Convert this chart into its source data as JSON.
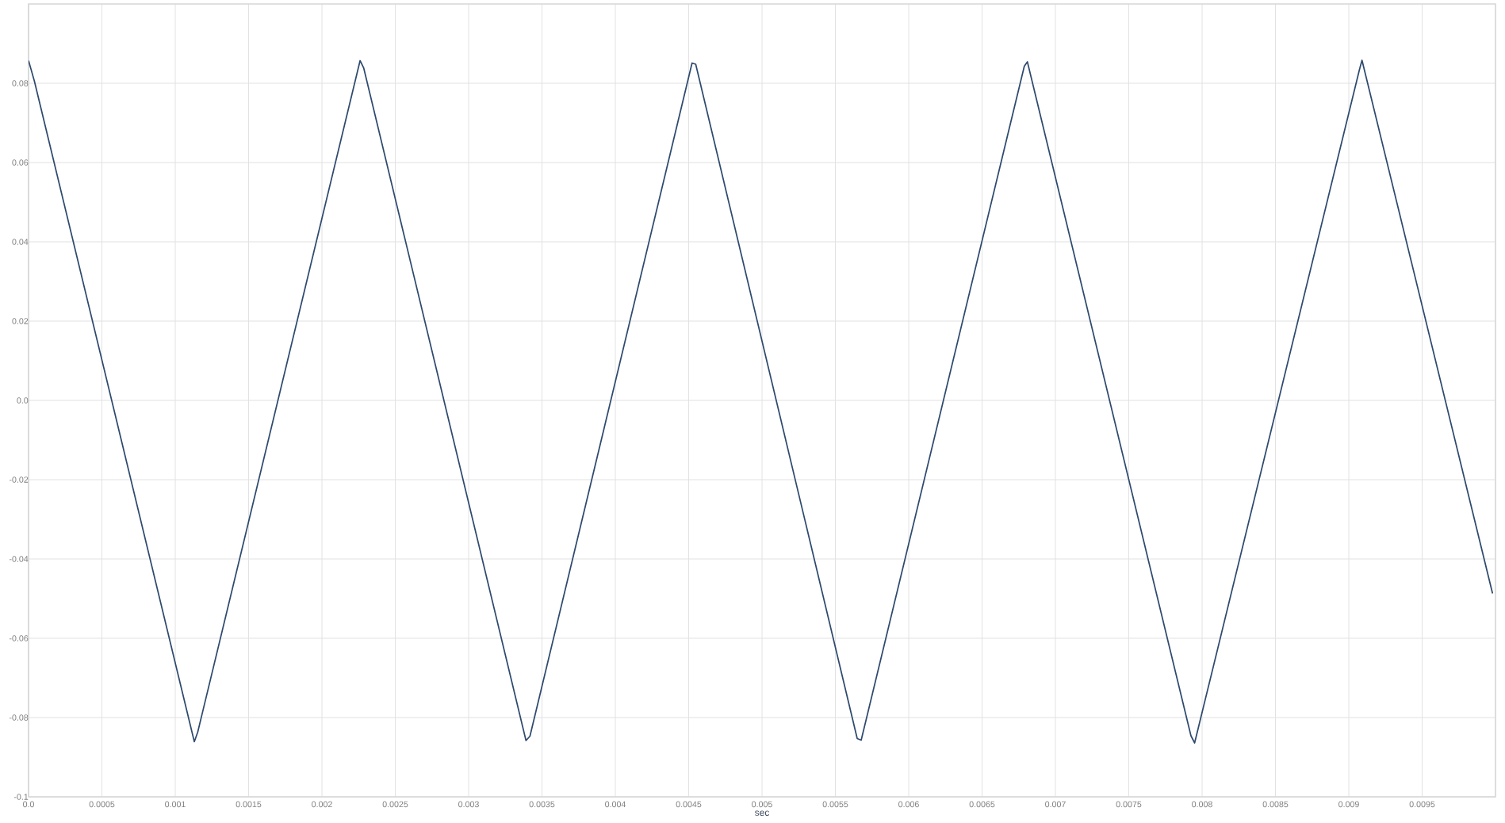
{
  "chart_data": {
    "type": "line",
    "xlabel": "sec",
    "x": [
      0,
      4e-05,
      0.00113,
      0.001153,
      0.00226,
      0.002285,
      0.003391,
      0.003418,
      0.004523,
      0.004548,
      0.005649,
      0.005676,
      0.006788,
      0.006809,
      0.007924,
      0.007949,
      0.009073,
      0.00909,
      0.00998
    ],
    "series": [
      {
        "color": "#2e4a6e",
        "values": [
          0.0857,
          0.0805,
          -0.0861,
          -0.0837,
          0.0857,
          0.0838,
          -0.0858,
          -0.0847,
          0.0851,
          0.0848,
          -0.0853,
          -0.0857,
          0.0843,
          0.0854,
          -0.0846,
          -0.0864,
          0.0835,
          0.0858,
          -0.0487
        ]
      }
    ],
    "xlim": [
      0,
      0.01
    ],
    "ylim": [
      -0.1,
      0.1
    ],
    "xticks": [
      {
        "value": 0,
        "label": "0.0"
      },
      0.0005,
      0.001,
      0.0015,
      0.002,
      0.0025,
      0.003,
      0.0035,
      0.004,
      0.0045,
      0.005,
      0.0055,
      0.006,
      0.0065,
      0.007,
      0.0075,
      0.008,
      0.0085,
      0.009,
      0.0095
    ],
    "yticks": [
      -0.1,
      -0.08,
      -0.06,
      -0.04,
      -0.02,
      {
        "value": 0,
        "label": "0.0"
      },
      0.02,
      0.04,
      0.06,
      0.08
    ],
    "grid": true,
    "marker": "none",
    "line_style": "solid"
  }
}
